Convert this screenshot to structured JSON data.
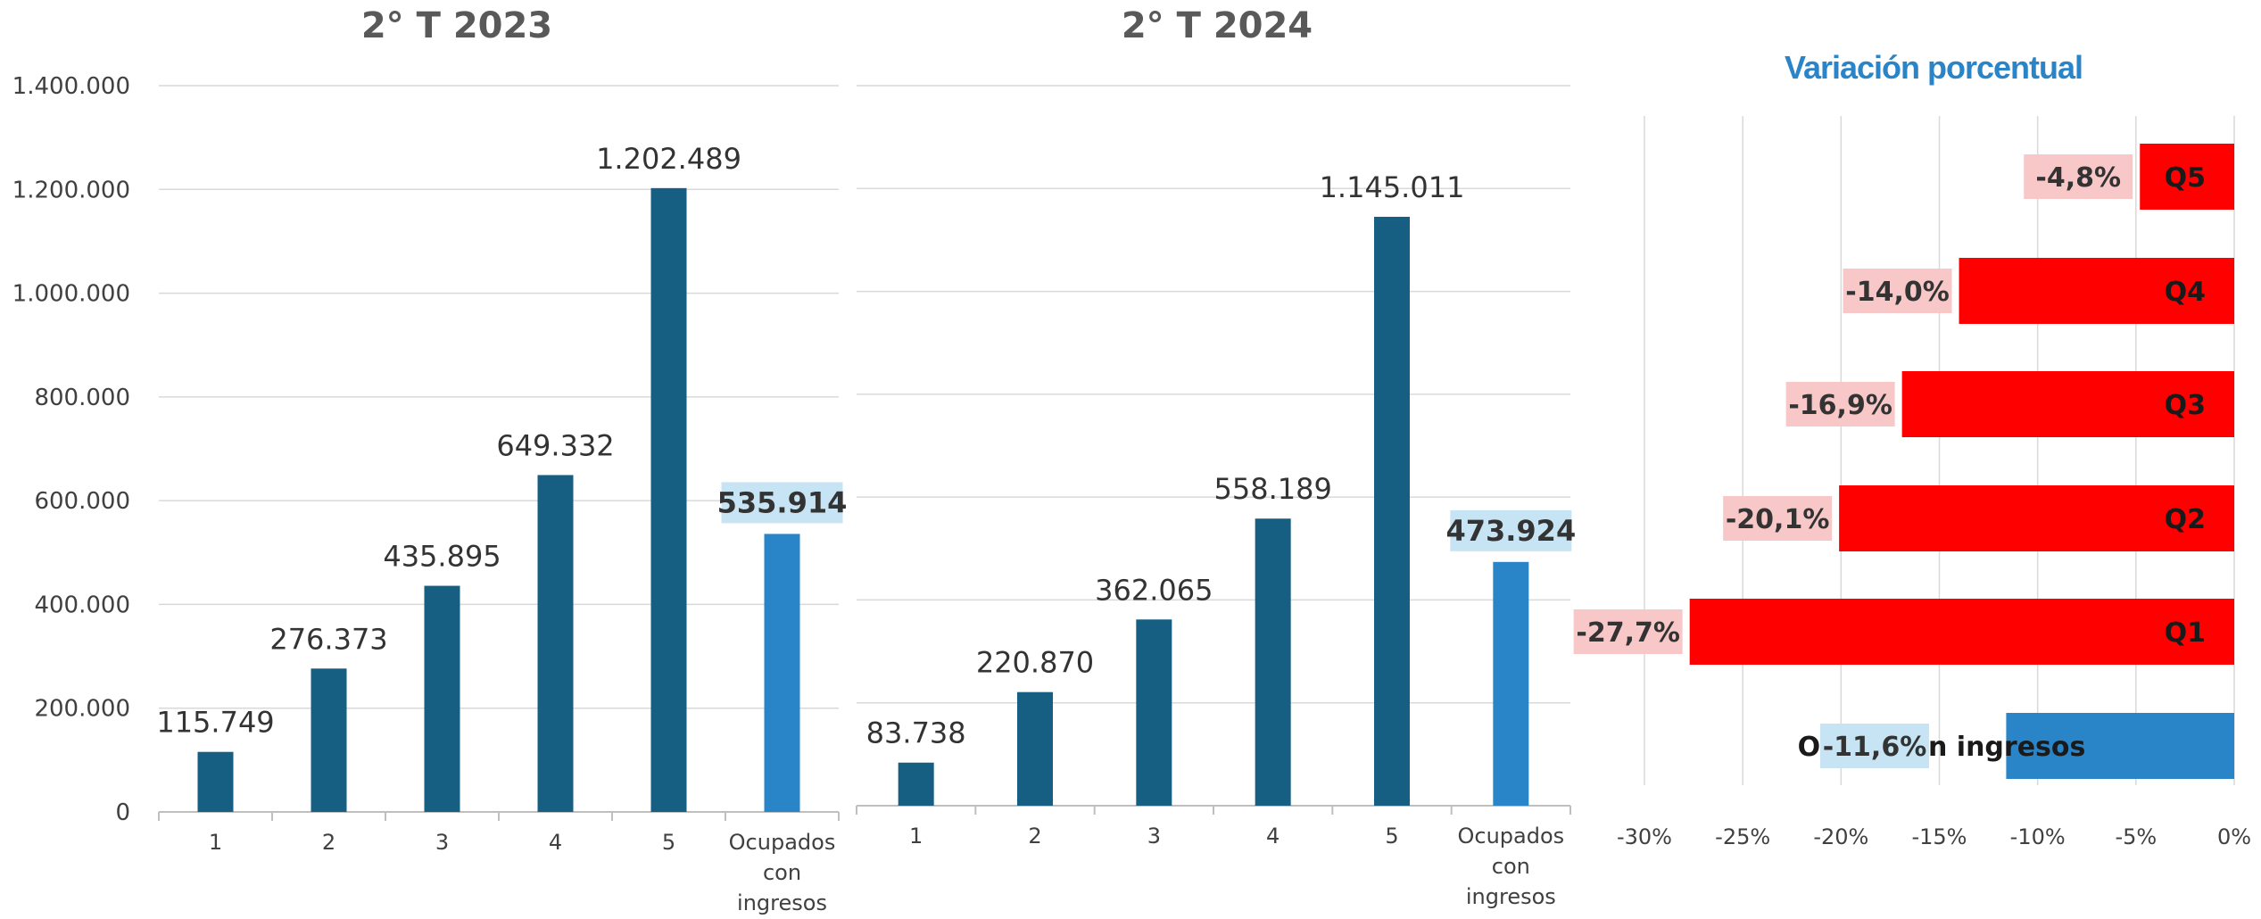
{
  "chart_data": [
    {
      "type": "bar",
      "title": "2° T 2023",
      "categories": [
        "1",
        "2",
        "3",
        "4",
        "5",
        "Ocupados con ingresos"
      ],
      "values": [
        115749,
        276373,
        435895,
        649332,
        1202489,
        535914
      ],
      "value_labels": [
        "115.749",
        "276.373",
        "435.895",
        "649.332",
        "1.202.489",
        "535.914"
      ],
      "ylim": [
        0,
        1400000
      ],
      "yticks": [
        0,
        200000,
        400000,
        600000,
        800000,
        1000000,
        1200000,
        1400000
      ],
      "ytick_labels": [
        "0",
        "200.000",
        "400.000",
        "600.000",
        "800.000",
        "1.000.000",
        "1.200.000",
        "1.400.000"
      ],
      "grid": true,
      "colors": {
        "bar": "#165f82",
        "highlight": "#2a84c8",
        "highlight_label_bg": "#c7e4f4"
      }
    },
    {
      "type": "bar",
      "title": "2° T 2024",
      "categories": [
        "1",
        "2",
        "3",
        "4",
        "5",
        "Ocupados con ingresos"
      ],
      "values": [
        83738,
        220870,
        362065,
        558189,
        1145011,
        473924
      ],
      "value_labels": [
        "83.738",
        "220.870",
        "362.065",
        "558.189",
        "1.145.011",
        "473.924"
      ],
      "ylim": [
        0,
        1400000
      ],
      "grid": true,
      "colors": {
        "bar": "#165f82",
        "highlight": "#2a84c8",
        "highlight_label_bg": "#c7e4f4"
      }
    },
    {
      "type": "bar",
      "orientation": "horizontal",
      "title": "Variación porcentual",
      "categories": [
        "Q5",
        "Q4",
        "Q3",
        "Q2",
        "Q1",
        "Ocup. con ingresos"
      ],
      "values": [
        -4.8,
        -14.0,
        -16.9,
        -20.1,
        -27.7,
        -11.6
      ],
      "value_labels": [
        "-4,8%",
        "-14,0%",
        "-16,9%",
        "-20,1%",
        "-27,7%",
        "-11,6%"
      ],
      "xlim": [
        -30,
        0
      ],
      "xticks": [
        -30,
        -25,
        -20,
        -15,
        -10,
        -5,
        0
      ],
      "xtick_labels": [
        "-30%",
        "-25%",
        "-20%",
        "-15%",
        "-10%",
        "-5%",
        "0%"
      ],
      "grid": true,
      "colors": {
        "bar": "#ff0000",
        "label_bg": "#f8c8c8",
        "highlight": "#2a84c8",
        "highlight_label_bg": "#c7e4f4"
      }
    }
  ]
}
